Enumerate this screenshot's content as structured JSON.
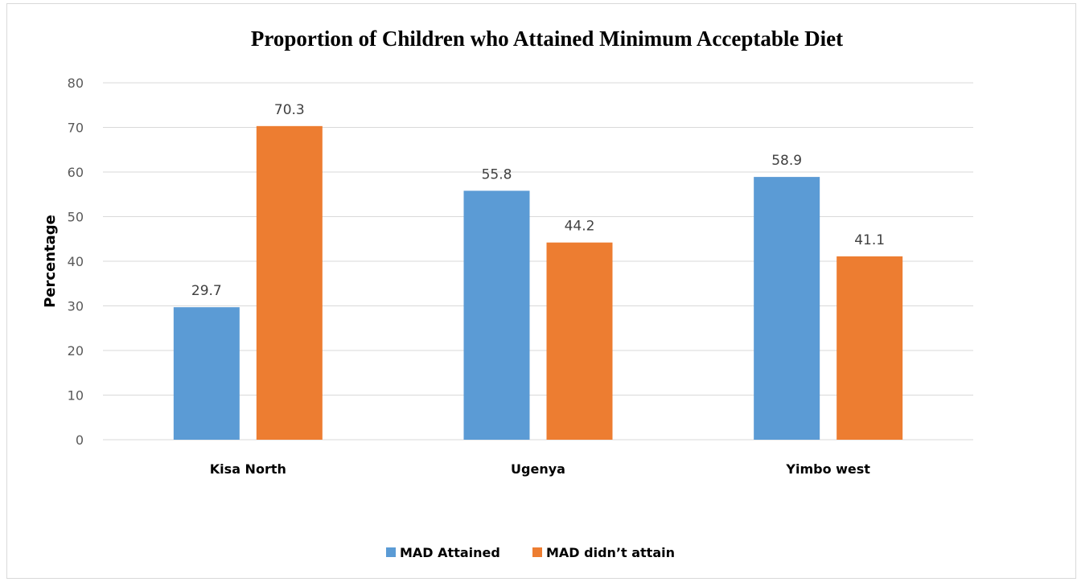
{
  "chart_data": {
    "type": "bar",
    "title": "Proportion of Children who Attained Minimum Acceptable Diet",
    "xlabel": "",
    "ylabel": "Percentage",
    "categories": [
      "Kisa North",
      "Ugenya",
      "Yimbo west"
    ],
    "series": [
      {
        "name": "MAD Attained",
        "values": [
          29.7,
          55.8,
          58.9
        ],
        "color": "#5B9BD5"
      },
      {
        "name": "MAD didn’t attain",
        "values": [
          70.3,
          44.2,
          41.1
        ],
        "color": "#ED7D31"
      }
    ],
    "ylim": [
      0,
      80
    ],
    "yticks": [
      0,
      10,
      20,
      30,
      40,
      50,
      60,
      70,
      80
    ],
    "grid": true,
    "legend_position": "bottom",
    "data_labels": true
  }
}
